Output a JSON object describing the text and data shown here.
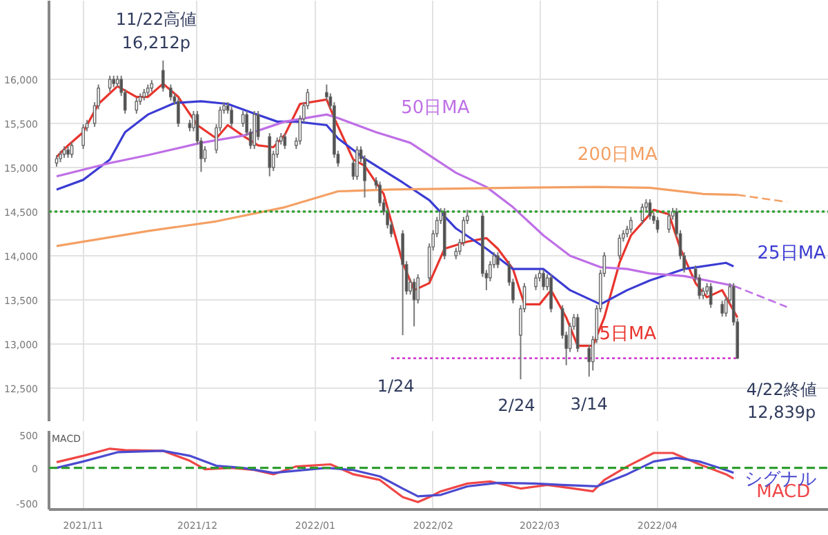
{
  "chart_data": [
    {
      "type": "candlestick",
      "xlim": [
        "2021-10-23",
        "2022-05-16"
      ],
      "ylim": [
        12125,
        16890
      ],
      "xticks": [
        "2021-11-01",
        "2021-12-01",
        "2022-01-01",
        "2022-02-01",
        "2022-03-01",
        "2022-04-01"
      ],
      "yticks": [
        {
          "value": 12500,
          "label": "12,500"
        },
        {
          "value": 13000,
          "label": "13,000"
        },
        {
          "value": 13500,
          "label": "13,500"
        },
        {
          "value": 14000,
          "label": "14,000"
        },
        {
          "value": 14500,
          "label": "14,500"
        },
        {
          "value": 15000,
          "label": "15,000"
        },
        {
          "value": 15500,
          "label": "15,500"
        },
        {
          "value": 16000,
          "label": "16,000"
        }
      ],
      "tick_labels": "y",
      "grid": true,
      "x": [
        "2021-10-25",
        "2021-10-26",
        "2021-10-27",
        "2021-10-28",
        "2021-10-29",
        "2021-11-01",
        "2021-11-02",
        "2021-11-04",
        "2021-11-05",
        "2021-11-08",
        "2021-11-09",
        "2021-11-10",
        "2021-11-11",
        "2021-11-12",
        "2021-11-15",
        "2021-11-16",
        "2021-11-17",
        "2021-11-18",
        "2021-11-19",
        "2021-11-22",
        "2021-11-24",
        "2021-11-25",
        "2021-11-26",
        "2021-11-29",
        "2021-11-30",
        "2021-12-01",
        "2021-12-02",
        "2021-12-03",
        "2021-12-06",
        "2021-12-07",
        "2021-12-08",
        "2021-12-09",
        "2021-12-10",
        "2021-12-13",
        "2021-12-14",
        "2021-12-15",
        "2021-12-16",
        "2021-12-17",
        "2021-12-20",
        "2021-12-21",
        "2021-12-22",
        "2021-12-23",
        "2021-12-24",
        "2021-12-27",
        "2021-12-28",
        "2021-12-29",
        "2021-12-30",
        "2022-01-04",
        "2022-01-05",
        "2022-01-06",
        "2022-01-07",
        "2022-01-11",
        "2022-01-12",
        "2022-01-13",
        "2022-01-14",
        "2022-01-17",
        "2022-01-18",
        "2022-01-19",
        "2022-01-20",
        "2022-01-21",
        "2022-01-24",
        "2022-01-25",
        "2022-01-26",
        "2022-01-27",
        "2022-01-28",
        "2022-01-31",
        "2022-02-01",
        "2022-02-02",
        "2022-02-03",
        "2022-02-04",
        "2022-02-07",
        "2022-02-08",
        "2022-02-09",
        "2022-02-10",
        "2022-02-14",
        "2022-02-15",
        "2022-02-16",
        "2022-02-17",
        "2022-02-18",
        "2022-02-21",
        "2022-02-22",
        "2022-02-24",
        "2022-02-25",
        "2022-02-28",
        "2022-03-01",
        "2022-03-02",
        "2022-03-03",
        "2022-03-04",
        "2022-03-07",
        "2022-03-08",
        "2022-03-09",
        "2022-03-10",
        "2022-03-11",
        "2022-03-14",
        "2022-03-15",
        "2022-03-16",
        "2022-03-17",
        "2022-03-18",
        "2022-03-22",
        "2022-03-23",
        "2022-03-24",
        "2022-03-25",
        "2022-03-28",
        "2022-03-29",
        "2022-03-30",
        "2022-03-31",
        "2022-04-01",
        "2022-04-04",
        "2022-04-05",
        "2022-04-06",
        "2022-04-07",
        "2022-04-08",
        "2022-04-11",
        "2022-04-12",
        "2022-04-13",
        "2022-04-14",
        "2022-04-15",
        "2022-04-18",
        "2022-04-19",
        "2022-04-20",
        "2022-04-21",
        "2022-04-22"
      ],
      "ohlc": [
        [
          15050,
          15140,
          15010,
          15100
        ],
        [
          15100,
          15190,
          15060,
          15150
        ],
        [
          15150,
          15240,
          15110,
          15200
        ],
        [
          15200,
          15240,
          15110,
          15150
        ],
        [
          15150,
          15290,
          15110,
          15250
        ],
        [
          15250,
          15490,
          15210,
          15450
        ],
        [
          15450,
          15540,
          15410,
          15500
        ],
        [
          15500,
          15740,
          15460,
          15700
        ],
        [
          15700,
          15940,
          15660,
          15900
        ],
        [
          15900,
          16040,
          15860,
          16000
        ],
        [
          16000,
          16040,
          15910,
          15950
        ],
        [
          15950,
          16040,
          15910,
          16000
        ],
        [
          16000,
          16040,
          15810,
          15850
        ],
        [
          15850,
          15890,
          15610,
          15650
        ],
        [
          15650,
          15790,
          15610,
          15750
        ],
        [
          15750,
          15840,
          15710,
          15800
        ],
        [
          15800,
          15890,
          15760,
          15850
        ],
        [
          15850,
          15940,
          15810,
          15900
        ],
        [
          15900,
          15990,
          15860,
          15950
        ],
        [
          16100,
          16212,
          15860,
          15900
        ],
        [
          15900,
          15940,
          15760,
          15800
        ],
        [
          15800,
          15840,
          15710,
          15750
        ],
        [
          15750,
          15790,
          15460,
          15500
        ],
        [
          15500,
          15540,
          15410,
          15450
        ],
        [
          15450,
          15640,
          15410,
          15600
        ],
        [
          15600,
          15640,
          15260,
          15300
        ],
        [
          15300,
          15340,
          14950,
          15100
        ],
        [
          15100,
          15240,
          15060,
          15200
        ],
        [
          15200,
          15490,
          15160,
          15450
        ],
        [
          15450,
          15690,
          15410,
          15650
        ],
        [
          15650,
          15740,
          15610,
          15700
        ],
        [
          15700,
          15740,
          15610,
          15650
        ],
        [
          15650,
          15690,
          15460,
          15500
        ],
        [
          15500,
          15640,
          15460,
          15600
        ],
        [
          15600,
          15640,
          15360,
          15400
        ],
        [
          15400,
          15440,
          15210,
          15250
        ],
        [
          15250,
          15640,
          15210,
          15600
        ],
        [
          15600,
          15640,
          15310,
          15350
        ],
        [
          15350,
          15390,
          14900,
          15000
        ],
        [
          15000,
          15190,
          14960,
          15150
        ],
        [
          15150,
          15340,
          15110,
          15300
        ],
        [
          15300,
          15390,
          15260,
          15350
        ],
        [
          15350,
          15390,
          15210,
          15250
        ],
        [
          15250,
          15340,
          15210,
          15300
        ],
        [
          15300,
          15590,
          15260,
          15550
        ],
        [
          15550,
          15740,
          15510,
          15700
        ],
        [
          15700,
          15890,
          15660,
          15850
        ],
        [
          15850,
          15940,
          15760,
          15800
        ],
        [
          15800,
          15840,
          15660,
          15700
        ],
        [
          15700,
          15740,
          15110,
          15150
        ],
        [
          15150,
          15190,
          15010,
          15050
        ],
        [
          15050,
          15090,
          14860,
          14900
        ],
        [
          14900,
          15240,
          14860,
          15200
        ],
        [
          15200,
          15240,
          15060,
          15100
        ],
        [
          15100,
          15140,
          14660,
          14850
        ],
        [
          14850,
          14890,
          14760,
          14800
        ],
        [
          14800,
          14840,
          14560,
          14600
        ],
        [
          14600,
          14640,
          14460,
          14500
        ],
        [
          14500,
          14540,
          14310,
          14350
        ],
        [
          14350,
          14390,
          14210,
          14250
        ],
        [
          14250,
          14290,
          13100,
          13900
        ],
        [
          13900,
          13940,
          13560,
          13600
        ],
        [
          13600,
          13740,
          13560,
          13700
        ],
        [
          13700,
          13740,
          13200,
          13500
        ],
        [
          13500,
          13790,
          13460,
          13750
        ],
        [
          13750,
          14140,
          13710,
          14100
        ],
        [
          14100,
          14290,
          14060,
          14250
        ],
        [
          14250,
          14440,
          14210,
          14400
        ],
        [
          14400,
          14540,
          14360,
          14500
        ],
        [
          14500,
          14540,
          13960,
          14000
        ],
        [
          14000,
          14090,
          13960,
          14050
        ],
        [
          14050,
          14190,
          14010,
          14150
        ],
        [
          14150,
          14440,
          14110,
          14400
        ],
        [
          14400,
          14520,
          14360,
          14450
        ],
        [
          14450,
          14490,
          13760,
          13800
        ],
        [
          13800,
          13840,
          13610,
          13750
        ],
        [
          13750,
          13940,
          13710,
          13900
        ],
        [
          13900,
          14040,
          13860,
          14000
        ],
        [
          14000,
          14040,
          13860,
          13900
        ],
        [
          13900,
          13940,
          13660,
          13700
        ],
        [
          13700,
          13740,
          13460,
          13500
        ],
        [
          13100,
          13440,
          12600,
          13400
        ],
        [
          13400,
          13690,
          13360,
          13650
        ],
        [
          13650,
          13790,
          13610,
          13750
        ],
        [
          13750,
          13840,
          13710,
          13800
        ],
        [
          13800,
          13840,
          13610,
          13650
        ],
        [
          13650,
          13790,
          13610,
          13750
        ],
        [
          13750,
          13790,
          13360,
          13400
        ],
        [
          13400,
          13440,
          13060,
          13100
        ],
        [
          13100,
          13140,
          12760,
          12950
        ],
        [
          12950,
          13240,
          12910,
          13200
        ],
        [
          13200,
          13340,
          13160,
          13300
        ],
        [
          13300,
          13340,
          12910,
          12950
        ],
        [
          12950,
          12990,
          12630,
          12800
        ],
        [
          12800,
          13090,
          12700,
          13050
        ],
        [
          13050,
          13440,
          13010,
          13400
        ],
        [
          13400,
          13840,
          13360,
          13800
        ],
        [
          13800,
          14040,
          13760,
          14000
        ],
        [
          14000,
          14240,
          13960,
          14200
        ],
        [
          14200,
          14290,
          14160,
          14250
        ],
        [
          14250,
          14340,
          14210,
          14300
        ],
        [
          14300,
          14440,
          14260,
          14400
        ],
        [
          14400,
          14590,
          14360,
          14550
        ],
        [
          14550,
          14640,
          14510,
          14600
        ],
        [
          14600,
          14640,
          14410,
          14450
        ],
        [
          14450,
          14490,
          14360,
          14400
        ],
        [
          14400,
          14440,
          14260,
          14300
        ],
        [
          14300,
          14490,
          14260,
          14450
        ],
        [
          14450,
          14540,
          14410,
          14500
        ],
        [
          14500,
          14540,
          14210,
          14250
        ],
        [
          14250,
          14290,
          13960,
          14000
        ],
        [
          14000,
          14040,
          13810,
          13850
        ],
        [
          13850,
          13890,
          13710,
          13750
        ],
        [
          13750,
          13790,
          13510,
          13550
        ],
        [
          13550,
          13640,
          13510,
          13600
        ],
        [
          13600,
          13690,
          13560,
          13650
        ],
        [
          13650,
          13690,
          13410,
          13450
        ],
        [
          13450,
          13490,
          13310,
          13350
        ],
        [
          13350,
          13540,
          13310,
          13500
        ],
        [
          13500,
          13690,
          13460,
          13650
        ],
        [
          13650,
          13690,
          13210,
          13250
        ],
        [
          13250,
          13290,
          12830,
          12839
        ]
      ],
      "series": [
        {
          "name": "5日MA",
          "type": "line",
          "color": "#e8342c",
          "x": [
            "2021-10-25",
            "2021-10-28",
            "2021-11-01",
            "2021-11-05",
            "2021-11-10",
            "2021-11-15",
            "2021-11-18",
            "2021-11-22",
            "2021-11-26",
            "2021-12-01",
            "2021-12-06",
            "2021-12-09",
            "2021-12-13",
            "2021-12-17",
            "2021-12-21",
            "2021-12-24",
            "2021-12-28",
            "2022-01-04",
            "2022-01-06",
            "2022-01-11",
            "2022-01-14",
            "2022-01-19",
            "2022-01-24",
            "2022-01-27",
            "2022-01-31",
            "2022-02-04",
            "2022-02-10",
            "2022-02-15",
            "2022-02-18",
            "2022-02-22",
            "2022-02-25",
            "2022-03-01",
            "2022-03-04",
            "2022-03-08",
            "2022-03-11",
            "2022-03-15",
            "2022-03-18",
            "2022-03-22",
            "2022-03-25",
            "2022-03-31",
            "2022-04-04",
            "2022-04-07",
            "2022-04-11",
            "2022-04-14",
            "2022-04-18",
            "2022-04-22"
          ],
          "values": [
            15120,
            15250,
            15400,
            15720,
            15920,
            15800,
            15800,
            15950,
            15800,
            15480,
            15330,
            15480,
            15360,
            15250,
            15230,
            15370,
            15720,
            15770,
            15560,
            15090,
            15020,
            14700,
            13920,
            13610,
            13690,
            14080,
            14160,
            14200,
            14080,
            13850,
            13450,
            13450,
            13610,
            13300,
            12980,
            12980,
            13300,
            13920,
            14230,
            14520,
            14470,
            14080,
            13690,
            13530,
            13610,
            13300
          ]
        },
        {
          "name": "25日MA",
          "type": "line",
          "color": "#3b3bd4",
          "x": [
            "2021-10-25",
            "2021-11-01",
            "2021-11-08",
            "2021-11-12",
            "2021-11-18",
            "2021-11-25",
            "2021-12-02",
            "2021-12-09",
            "2021-12-16",
            "2021-12-22",
            "2021-12-27",
            "2022-01-04",
            "2022-01-07",
            "2022-01-14",
            "2022-01-24",
            "2022-01-31",
            "2022-02-07",
            "2022-02-15",
            "2022-02-22",
            "2022-03-02",
            "2022-03-09",
            "2022-03-17",
            "2022-03-24",
            "2022-03-30",
            "2022-04-08",
            "2022-04-19",
            "2022-04-21"
          ],
          "values": [
            14750,
            14860,
            15090,
            15400,
            15600,
            15730,
            15750,
            15720,
            15610,
            15520,
            15520,
            15480,
            15330,
            15100,
            14830,
            14630,
            14310,
            14080,
            13850,
            13850,
            13610,
            13450,
            13610,
            13720,
            13850,
            13920,
            13880
          ]
        },
        {
          "name": "50日MA",
          "type": "line",
          "color": "#bf6fe6",
          "x": [
            "2021-10-25",
            "2021-11-08",
            "2021-11-18",
            "2021-12-02",
            "2021-12-13",
            "2021-12-24",
            "2022-01-04",
            "2022-01-07",
            "2022-01-17",
            "2022-01-26",
            "2022-02-07",
            "2022-02-15",
            "2022-02-22",
            "2022-03-02",
            "2022-03-09",
            "2022-03-17",
            "2022-03-24",
            "2022-03-30",
            "2022-04-08",
            "2022-04-21"
          ],
          "values": [
            14900,
            15050,
            15140,
            15280,
            15360,
            15520,
            15600,
            15560,
            15400,
            15280,
            14940,
            14780,
            14550,
            14230,
            14000,
            13870,
            13850,
            13800,
            13770,
            13660
          ]
        },
        {
          "name": "200日MA",
          "type": "line",
          "color": "#f4a064",
          "x": [
            "2021-10-25",
            "2021-11-18",
            "2021-12-06",
            "2021-12-24",
            "2022-01-07",
            "2022-01-21",
            "2022-02-22",
            "2022-03-16",
            "2022-03-30",
            "2022-04-13",
            "2022-04-22"
          ],
          "values": [
            14110,
            14280,
            14390,
            14550,
            14730,
            14750,
            14770,
            14780,
            14770,
            14700,
            14690
          ]
        },
        {
          "type": "line",
          "color": "#bf6fe6",
          "line_style": "dashed",
          "x": [
            "2022-04-21",
            "2022-05-05"
          ],
          "values": [
            13660,
            13420
          ]
        },
        {
          "type": "line",
          "color": "#f4a064",
          "line_style": "dashed",
          "x": [
            "2022-04-22",
            "2022-05-05"
          ],
          "values": [
            14690,
            14610
          ]
        },
        {
          "type": "line",
          "color": "#d23ed2",
          "line_style": "dotted",
          "x": [
            "2022-01-21",
            "2022-04-22"
          ],
          "values": [
            12839,
            12839
          ]
        }
      ],
      "ref_lines": [
        {
          "axis": "y",
          "value": 14500,
          "color": "#2e9e2e",
          "line_style": "dotted"
        }
      ],
      "annotations": [
        {
          "text": "11/22高値\n16,212p",
          "x": "2021-11-22",
          "y": 16212
        },
        {
          "text": "1/24",
          "x": "2022-01-24",
          "y": 13100
        },
        {
          "text": "2/24",
          "x": "2022-02-24",
          "y": 12600
        },
        {
          "text": "3/14",
          "x": "2022-03-14",
          "y": 12630
        },
        {
          "text": "4/22終値\n12,839p",
          "x": "2022-04-22",
          "y": 12839
        }
      ]
    },
    {
      "type": "line",
      "title": "MACD",
      "xlim": [
        "2021-10-23",
        "2022-05-16"
      ],
      "ylim": [
        -585,
        520
      ],
      "yticks": [
        -500,
        0,
        500
      ],
      "xticks": [
        {
          "value": "2021-11-01",
          "label": "2021/11"
        },
        {
          "value": "2021-12-01",
          "label": "2021/12"
        },
        {
          "value": "2022-01-01",
          "label": "2022/01"
        },
        {
          "value": "2022-02-01",
          "label": "2022/02"
        },
        {
          "value": "2022-03-01",
          "label": "2022/03"
        },
        {
          "value": "2022-04-01",
          "label": "2022/04"
        }
      ],
      "grid": "x",
      "series": [
        {
          "name": "MACD",
          "color": "#f04646",
          "x": [
            "2021-10-25",
            "2021-11-01",
            "2021-11-08",
            "2021-11-12",
            "2021-11-22",
            "2021-11-29",
            "2021-12-03",
            "2021-12-10",
            "2021-12-16",
            "2021-12-21",
            "2021-12-27",
            "2022-01-05",
            "2022-01-11",
            "2022-01-18",
            "2022-01-24",
            "2022-01-28",
            "2022-01-31",
            "2022-02-03",
            "2022-02-10",
            "2022-02-16",
            "2022-02-24",
            "2022-03-03",
            "2022-03-10",
            "2022-03-15",
            "2022-03-18",
            "2022-03-24",
            "2022-03-31",
            "2022-04-05",
            "2022-04-12",
            "2022-04-19",
            "2022-04-21"
          ],
          "values": [
            80,
            170,
            270,
            250,
            240,
            100,
            -20,
            0,
            -30,
            -90,
            20,
            50,
            -90,
            -170,
            -410,
            -480,
            -410,
            -330,
            -220,
            -190,
            -290,
            -240,
            -290,
            -330,
            -170,
            20,
            210,
            210,
            50,
            -90,
            -150
          ]
        },
        {
          "name": "シグナル",
          "color": "#4a4ad0",
          "x": [
            "2021-10-25",
            "2021-11-01",
            "2021-11-10",
            "2021-11-22",
            "2021-11-29",
            "2021-12-06",
            "2021-12-13",
            "2021-12-21",
            "2022-01-04",
            "2022-01-11",
            "2022-01-18",
            "2022-01-24",
            "2022-01-28",
            "2022-02-03",
            "2022-02-10",
            "2022-02-18",
            "2022-02-28",
            "2022-03-07",
            "2022-03-16",
            "2022-03-24",
            "2022-03-31",
            "2022-04-06",
            "2022-04-12",
            "2022-04-19",
            "2022-04-21"
          ],
          "values": [
            0,
            90,
            220,
            240,
            170,
            30,
            0,
            -70,
            0,
            -30,
            -120,
            -290,
            -400,
            -380,
            -260,
            -210,
            -220,
            -240,
            -260,
            -90,
            90,
            140,
            90,
            -30,
            -70
          ]
        }
      ],
      "ref_lines": [
        {
          "axis": "y",
          "value": 0,
          "color": "#2e9e2e",
          "line_style": "dashed"
        }
      ]
    }
  ]
}
